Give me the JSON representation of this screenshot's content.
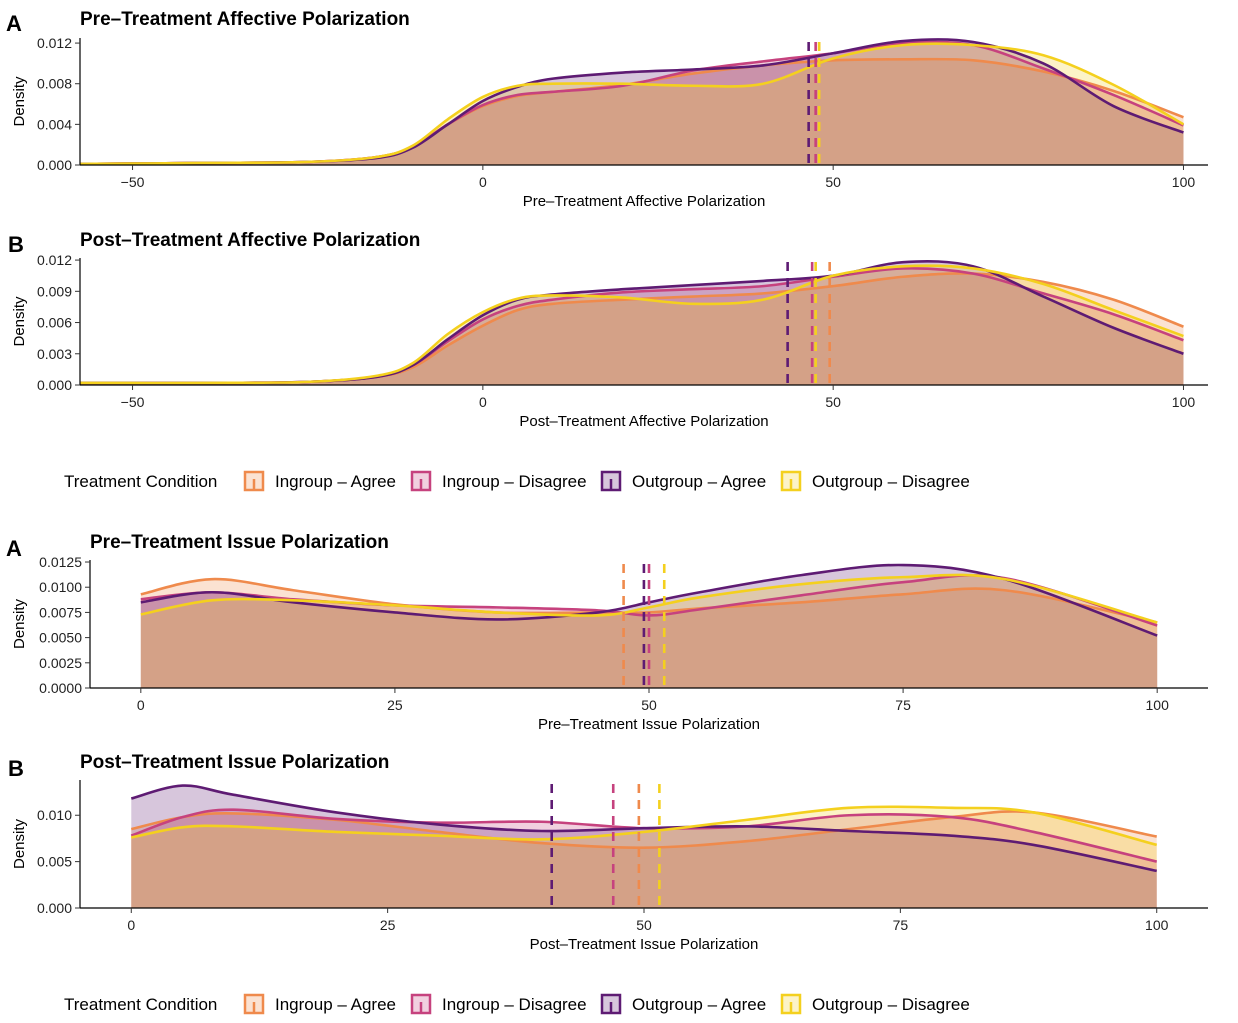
{
  "legend_title": "Treatment Condition",
  "conditions": [
    {
      "name": "Ingroup – Agree",
      "color": "#EF8A4C"
    },
    {
      "name": "Ingroup – Disagree",
      "color": "#C6427E"
    },
    {
      "name": "Outgroup – Agree",
      "color": "#5E1B73"
    },
    {
      "name": "Outgroup – Disagree",
      "color": "#F4D01E"
    }
  ],
  "fill_opacity": 0.25,
  "chart_data": [
    {
      "type": "area",
      "panel_tag": "A",
      "title": "Pre–Treatment Affective Polarization",
      "xlabel": "Pre–Treatment Affective Polarization",
      "ylabel": "Density",
      "xlim": [
        -57.5,
        103.5
      ],
      "ylim": [
        0,
        0.0125
      ],
      "xticks": [
        {
          "v": -50,
          "label": "−50"
        },
        {
          "v": 0,
          "label": "0"
        },
        {
          "v": 50,
          "label": "50"
        },
        {
          "v": 100,
          "label": "100"
        }
      ],
      "yticks": [
        {
          "v": 0,
          "label": "0.000"
        },
        {
          "v": 0.004,
          "label": "0.004"
        },
        {
          "v": 0.008,
          "label": "0.008"
        },
        {
          "v": 0.012,
          "label": "0.012"
        }
      ],
      "x": [
        -57.5,
        -40,
        -25,
        -15,
        -10,
        -5,
        0,
        5,
        10,
        20,
        30,
        40,
        50,
        60,
        70,
        80,
        90,
        100
      ],
      "series": [
        {
          "name": "Ingroup – Agree",
          "values": [
            0.0001,
            0.0002,
            0.0003,
            0.0008,
            0.0018,
            0.004,
            0.0058,
            0.0068,
            0.0072,
            0.0079,
            0.009,
            0.0098,
            0.0103,
            0.0104,
            0.0103,
            0.0092,
            0.0073,
            0.0047
          ],
          "mean": 48.0
        },
        {
          "name": "Ingroup – Disagree",
          "values": [
            0.0001,
            0.0002,
            0.0003,
            0.0008,
            0.0018,
            0.004,
            0.0059,
            0.0069,
            0.0072,
            0.0078,
            0.0093,
            0.0102,
            0.011,
            0.012,
            0.0118,
            0.0095,
            0.0069,
            0.0039
          ],
          "mean": 47.5
        },
        {
          "name": "Outgroup – Agree",
          "values": [
            0.0001,
            0.0002,
            0.0003,
            0.0007,
            0.0017,
            0.004,
            0.0063,
            0.0077,
            0.0085,
            0.0091,
            0.0094,
            0.0098,
            0.011,
            0.0122,
            0.0121,
            0.01,
            0.0058,
            0.0032
          ],
          "mean": 46.5
        },
        {
          "name": "Outgroup – Disagree",
          "values": [
            0.0001,
            0.0002,
            0.0003,
            0.0008,
            0.0019,
            0.0045,
            0.0067,
            0.0078,
            0.008,
            0.008,
            0.0078,
            0.008,
            0.0105,
            0.0118,
            0.0118,
            0.0108,
            0.0079,
            0.004
          ],
          "mean": 48.0
        }
      ]
    },
    {
      "type": "area",
      "panel_tag": "B",
      "title": "Post–Treatment Affective Polarization",
      "xlabel": "Post–Treatment Affective Polarization",
      "ylabel": "Density",
      "xlim": [
        -57.5,
        103.5
      ],
      "ylim": [
        0,
        0.0122
      ],
      "xticks": [
        {
          "v": -50,
          "label": "−50"
        },
        {
          "v": 0,
          "label": "0"
        },
        {
          "v": 50,
          "label": "50"
        },
        {
          "v": 100,
          "label": "100"
        }
      ],
      "yticks": [
        {
          "v": 0,
          "label": "0.000"
        },
        {
          "v": 0.003,
          "label": "0.003"
        },
        {
          "v": 0.006,
          "label": "0.006"
        },
        {
          "v": 0.009,
          "label": "0.009"
        },
        {
          "v": 0.012,
          "label": "0.012"
        }
      ],
      "x": [
        -57.5,
        -40,
        -25,
        -15,
        -10,
        -5,
        0,
        5,
        10,
        20,
        30,
        40,
        50,
        60,
        70,
        80,
        90,
        100
      ],
      "series": [
        {
          "name": "Ingroup – Agree",
          "values": [
            0.0002,
            0.0002,
            0.0003,
            0.0008,
            0.0017,
            0.0038,
            0.0057,
            0.0072,
            0.0078,
            0.0082,
            0.0085,
            0.0088,
            0.0095,
            0.0104,
            0.0107,
            0.0099,
            0.0082,
            0.0056
          ],
          "mean": 49.5
        },
        {
          "name": "Ingroup – Disagree",
          "values": [
            0.0002,
            0.0002,
            0.0003,
            0.0008,
            0.0019,
            0.0042,
            0.0063,
            0.0076,
            0.0082,
            0.0089,
            0.0092,
            0.0095,
            0.0104,
            0.0112,
            0.0107,
            0.0088,
            0.0068,
            0.0043
          ],
          "mean": 47.0
        },
        {
          "name": "Outgroup – Agree",
          "values": [
            0.0002,
            0.0002,
            0.0003,
            0.0008,
            0.0019,
            0.0044,
            0.0067,
            0.0082,
            0.0087,
            0.0092,
            0.0096,
            0.01,
            0.0105,
            0.0118,
            0.0114,
            0.0085,
            0.0055,
            0.003
          ],
          "mean": 43.5
        },
        {
          "name": "Outgroup – Disagree",
          "values": [
            0.0002,
            0.0002,
            0.0003,
            0.0009,
            0.0021,
            0.0049,
            0.007,
            0.0083,
            0.0086,
            0.0084,
            0.0078,
            0.0082,
            0.0105,
            0.0114,
            0.0112,
            0.0097,
            0.0072,
            0.0047
          ],
          "mean": 47.5
        }
      ]
    },
    {
      "type": "area",
      "panel_tag": "A",
      "title": "Pre–Treatment Issue Polarization",
      "xlabel": "Pre–Treatment Issue Polarization",
      "ylabel": "Density",
      "xlim": [
        -5,
        105
      ],
      "ylim": [
        0,
        0.0127
      ],
      "xticks": [
        {
          "v": 0,
          "label": "0"
        },
        {
          "v": 25,
          "label": "25"
        },
        {
          "v": 50,
          "label": "50"
        },
        {
          "v": 75,
          "label": "75"
        },
        {
          "v": 100,
          "label": "100"
        }
      ],
      "yticks": [
        {
          "v": 0,
          "label": "0.0000"
        },
        {
          "v": 0.0025,
          "label": "0.0025"
        },
        {
          "v": 0.005,
          "label": "0.0050"
        },
        {
          "v": 0.0075,
          "label": "0.0075"
        },
        {
          "v": 0.01,
          "label": "0.0100"
        },
        {
          "v": 0.0125,
          "label": "0.0125"
        }
      ],
      "x": [
        0,
        7,
        15,
        25,
        35,
        45,
        50,
        55,
        65,
        75,
        85,
        100
      ],
      "series": [
        {
          "name": "Ingroup – Agree",
          "values": [
            0.0093,
            0.0108,
            0.0097,
            0.0083,
            0.0075,
            0.0075,
            0.0075,
            0.0079,
            0.0085,
            0.0093,
            0.0097,
            0.0065
          ],
          "mean": 47.5
        },
        {
          "name": "Ingroup – Disagree",
          "values": [
            0.0088,
            0.0095,
            0.0088,
            0.0082,
            0.008,
            0.0077,
            0.0072,
            0.0078,
            0.0092,
            0.0105,
            0.0109,
            0.0062
          ],
          "mean": 50.0
        },
        {
          "name": "Outgroup – Agree",
          "values": [
            0.0085,
            0.0095,
            0.0085,
            0.0075,
            0.0068,
            0.0075,
            0.0085,
            0.0095,
            0.0112,
            0.0122,
            0.0108,
            0.0052
          ],
          "mean": 49.5
        },
        {
          "name": "Outgroup – Disagree",
          "values": [
            0.0073,
            0.0087,
            0.0087,
            0.0082,
            0.0075,
            0.0072,
            0.008,
            0.009,
            0.0103,
            0.011,
            0.0108,
            0.0065
          ],
          "mean": 51.5
        }
      ]
    },
    {
      "type": "area",
      "panel_tag": "B",
      "title": "Post–Treatment Issue Polarization",
      "xlabel": "Post–Treatment Issue Polarization",
      "ylabel": "Density",
      "xlim": [
        -5,
        105
      ],
      "ylim": [
        0,
        0.0138
      ],
      "xticks": [
        {
          "v": 0,
          "label": "0"
        },
        {
          "v": 25,
          "label": "25"
        },
        {
          "v": 50,
          "label": "50"
        },
        {
          "v": 75,
          "label": "75"
        },
        {
          "v": 100,
          "label": "100"
        }
      ],
      "yticks": [
        {
          "v": 0,
          "label": "0.000"
        },
        {
          "v": 0.005,
          "label": "0.005"
        },
        {
          "v": 0.01,
          "label": "0.010"
        }
      ],
      "x": [
        0,
        5,
        10,
        20,
        30,
        40,
        50,
        60,
        70,
        80,
        88,
        100
      ],
      "series": [
        {
          "name": "Ingroup – Agree",
          "values": [
            0.0085,
            0.0098,
            0.0102,
            0.0095,
            0.0082,
            0.007,
            0.0065,
            0.0072,
            0.0085,
            0.0098,
            0.0103,
            0.0077
          ],
          "mean": 49.5
        },
        {
          "name": "Ingroup – Disagree",
          "values": [
            0.0078,
            0.0098,
            0.0106,
            0.0096,
            0.0092,
            0.0093,
            0.0086,
            0.0088,
            0.01,
            0.0098,
            0.0082,
            0.005
          ],
          "mean": 47.0
        },
        {
          "name": "Outgroup – Agree",
          "values": [
            0.0118,
            0.0132,
            0.0122,
            0.0103,
            0.009,
            0.0083,
            0.0086,
            0.0088,
            0.0083,
            0.0078,
            0.0068,
            0.004
          ],
          "mean": 41.0
        },
        {
          "name": "Outgroup – Disagree",
          "values": [
            0.0076,
            0.0087,
            0.0088,
            0.0082,
            0.0078,
            0.0074,
            0.0082,
            0.0095,
            0.0108,
            0.0108,
            0.0103,
            0.0068
          ],
          "mean": 51.5
        }
      ]
    }
  ]
}
